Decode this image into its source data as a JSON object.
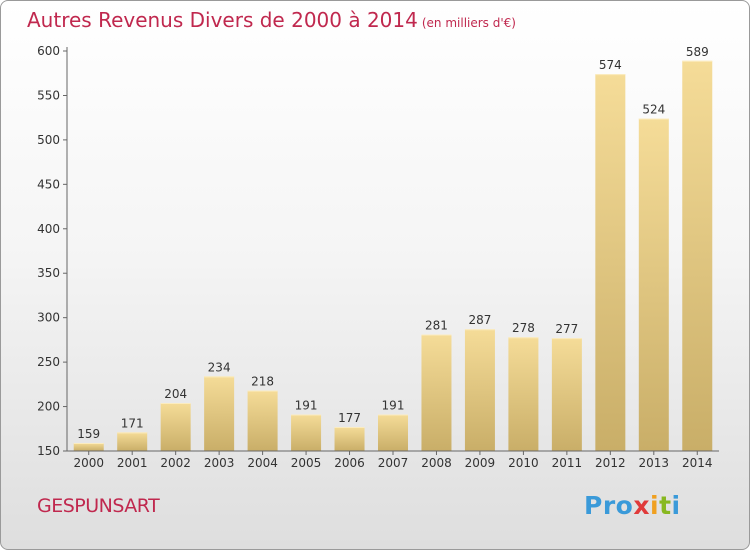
{
  "title": {
    "main": "Autres Revenus Divers de 2000 à 2014",
    "unit": "(en milliers d'€)"
  },
  "commune": "GESPUNSART",
  "logo": {
    "text": "Proxiti",
    "letters": [
      {
        "ch": "P",
        "color": "#3a9ad9"
      },
      {
        "ch": "r",
        "color": "#3a9ad9"
      },
      {
        "ch": "o",
        "color": "#3a9ad9"
      },
      {
        "ch": "x",
        "color": "#e03a3a"
      },
      {
        "ch": "i",
        "color": "#f0a020"
      },
      {
        "ch": "t",
        "color": "#88b820"
      },
      {
        "ch": "i",
        "color": "#3a9ad9"
      }
    ]
  },
  "colors": {
    "accent": "#c0284e",
    "bar_light": "#f5dc98",
    "bar_dark": "#c9ae68",
    "axis": "#666666"
  },
  "chart_data": {
    "type": "bar",
    "title": "Autres Revenus Divers de 2000 à 2014",
    "xlabel": "",
    "ylabel": "",
    "categories": [
      "2000",
      "2001",
      "2002",
      "2003",
      "2004",
      "2005",
      "2006",
      "2007",
      "2008",
      "2009",
      "2010",
      "2011",
      "2012",
      "2013",
      "2014"
    ],
    "values": [
      159,
      171,
      204,
      234,
      218,
      191,
      177,
      191,
      281,
      287,
      278,
      277,
      574,
      524,
      589
    ],
    "ylim": [
      150,
      600
    ],
    "yticks": [
      150,
      200,
      250,
      300,
      350,
      400,
      450,
      500,
      550,
      600
    ],
    "grid": false,
    "legend": "none"
  }
}
